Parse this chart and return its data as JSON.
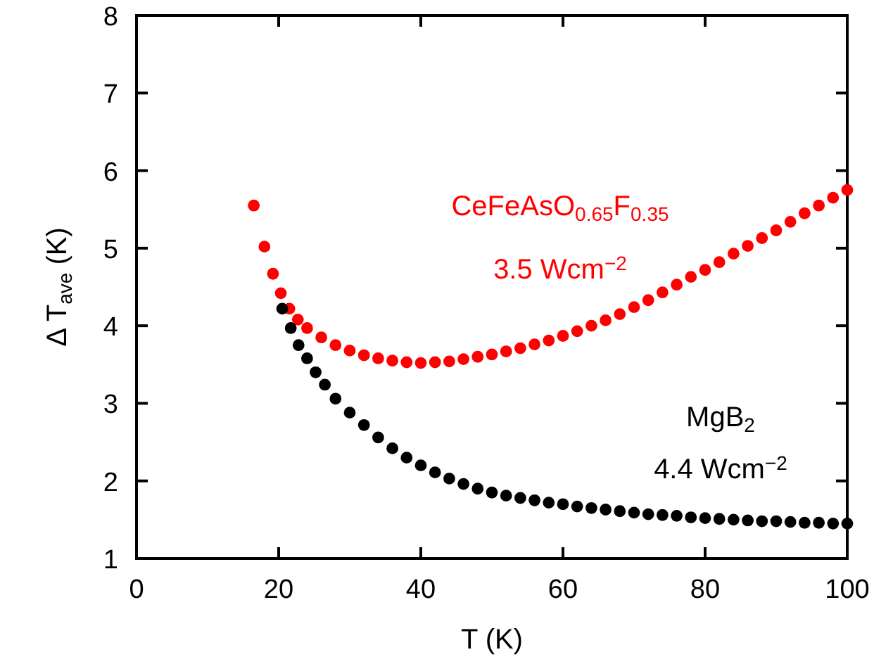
{
  "chart_data": {
    "type": "scatter",
    "xlabel": "T (K)",
    "ylabel": "Δ T$_{ave}$ (K)",
    "xlim": [
      0,
      100
    ],
    "xticks": [
      0,
      20,
      40,
      60,
      80,
      100
    ],
    "ylim": [
      1,
      8
    ],
    "yticks": [
      1,
      2,
      3,
      4,
      5,
      6,
      7,
      8
    ],
    "marker": "circle",
    "grid": false,
    "series": [
      {
        "name": "CeFeAsO$_{0.65}$F$_{0.35}$",
        "color": "#ff0000",
        "x": [
          16.5,
          18,
          19.2,
          20.3,
          21.5,
          22.7,
          24,
          26,
          28,
          30,
          32,
          34,
          36,
          38,
          40,
          42,
          44,
          46,
          48,
          50,
          52,
          54,
          56,
          58,
          60,
          62,
          64,
          66,
          68,
          70,
          72,
          74,
          76,
          78,
          80,
          82,
          84,
          86,
          88,
          90,
          92,
          94,
          96,
          98,
          100
        ],
        "values": [
          5.55,
          5.02,
          4.67,
          4.42,
          4.22,
          4.08,
          3.97,
          3.85,
          3.75,
          3.68,
          3.62,
          3.58,
          3.55,
          3.53,
          3.52,
          3.53,
          3.54,
          3.57,
          3.6,
          3.63,
          3.67,
          3.71,
          3.76,
          3.81,
          3.87,
          3.93,
          4.0,
          4.07,
          4.15,
          4.24,
          4.33,
          4.43,
          4.53,
          4.63,
          4.72,
          4.82,
          4.93,
          5.03,
          5.13,
          5.23,
          5.34,
          5.45,
          5.55,
          5.65,
          5.75
        ]
      },
      {
        "name": "MgB$_{2}$",
        "color": "#000000",
        "x": [
          20.5,
          21.7,
          22.8,
          24,
          25.2,
          26.5,
          28,
          30,
          32,
          34,
          36,
          38,
          40,
          42,
          44,
          46,
          48,
          50,
          52,
          54,
          56,
          58,
          60,
          62,
          64,
          66,
          68,
          70,
          72,
          74,
          76,
          78,
          80,
          82,
          84,
          86,
          88,
          90,
          92,
          94,
          96,
          98,
          100
        ],
        "values": [
          4.22,
          3.97,
          3.75,
          3.58,
          3.4,
          3.24,
          3.06,
          2.88,
          2.72,
          2.56,
          2.42,
          2.3,
          2.2,
          2.11,
          2.03,
          1.96,
          1.9,
          1.85,
          1.81,
          1.78,
          1.75,
          1.72,
          1.7,
          1.67,
          1.65,
          1.63,
          1.61,
          1.59,
          1.57,
          1.56,
          1.55,
          1.53,
          1.52,
          1.51,
          1.5,
          1.49,
          1.48,
          1.48,
          1.47,
          1.46,
          1.46,
          1.45,
          1.45
        ]
      }
    ],
    "annotations": [
      "3.5 Wcm$^{−2}$",
      "4.4 Wcm$^{−2}$"
    ]
  }
}
